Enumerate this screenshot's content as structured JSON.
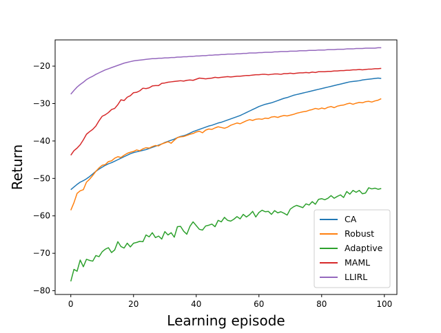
{
  "chart_data": {
    "type": "line",
    "title": "",
    "xlabel": "Learning episode",
    "ylabel": "Return",
    "xlim": [
      -5,
      104
    ],
    "ylim": [
      -81,
      -13
    ],
    "xticks": [
      0,
      20,
      40,
      60,
      80,
      100
    ],
    "yticks": [
      -80,
      -70,
      -60,
      -50,
      -40,
      -30,
      -20
    ],
    "grid": false,
    "legend_position": "lower-right",
    "x": [
      0,
      1,
      2,
      3,
      4,
      5,
      6,
      7,
      8,
      9,
      10,
      11,
      12,
      13,
      14,
      15,
      16,
      17,
      18,
      19,
      20,
      21,
      22,
      23,
      24,
      25,
      26,
      27,
      28,
      29,
      30,
      31,
      32,
      33,
      34,
      35,
      36,
      37,
      38,
      39,
      40,
      41,
      42,
      43,
      44,
      45,
      46,
      47,
      48,
      49,
      50,
      51,
      52,
      53,
      54,
      55,
      56,
      57,
      58,
      59,
      60,
      61,
      62,
      63,
      64,
      65,
      66,
      67,
      68,
      69,
      70,
      71,
      72,
      73,
      74,
      75,
      76,
      77,
      78,
      79,
      80,
      81,
      82,
      83,
      84,
      85,
      86,
      87,
      88,
      89,
      90,
      91,
      92,
      93,
      94,
      95,
      96,
      97,
      98,
      99
    ],
    "series": [
      {
        "name": "CA",
        "color": "#1f77b4",
        "values": [
          -53,
          -52.3,
          -51.6,
          -51,
          -50.6,
          -50.1,
          -49.5,
          -48.8,
          -48.1,
          -47.5,
          -47,
          -46.5,
          -46.1,
          -45.8,
          -45.4,
          -45,
          -44.6,
          -44.2,
          -43.8,
          -43.4,
          -43.1,
          -42.9,
          -42.7,
          -42.5,
          -42.3,
          -42,
          -41.7,
          -41.4,
          -41.1,
          -40.8,
          -40.4,
          -40.1,
          -39.8,
          -39.5,
          -39.1,
          -38.8,
          -38.6,
          -38.3,
          -37.9,
          -37.5,
          -37.2,
          -36.9,
          -36.6,
          -36.3,
          -36,
          -35.8,
          -35.5,
          -35.2,
          -35,
          -34.7,
          -34.4,
          -34.1,
          -33.8,
          -33.5,
          -33.2,
          -32.8,
          -32.4,
          -32,
          -31.6,
          -31.2,
          -30.8,
          -30.5,
          -30.2,
          -30,
          -29.8,
          -29.5,
          -29.2,
          -28.9,
          -28.6,
          -28.4,
          -28.1,
          -27.8,
          -27.6,
          -27.4,
          -27.2,
          -27,
          -26.8,
          -26.6,
          -26.4,
          -26.2,
          -26,
          -25.8,
          -25.6,
          -25.4,
          -25.2,
          -25,
          -24.8,
          -24.6,
          -24.4,
          -24.2,
          -24.1,
          -24,
          -23.9,
          -23.7,
          -23.6,
          -23.5,
          -23.4,
          -23.3,
          -23.2,
          -23.3
        ]
      },
      {
        "name": "Robust",
        "color": "#ff7f0e",
        "values": [
          -58.5,
          -56.5,
          -54,
          -53.3,
          -53,
          -51,
          -50.2,
          -49.2,
          -48.1,
          -47.2,
          -46.5,
          -46.3,
          -45.5,
          -45.3,
          -44.6,
          -44.2,
          -44.4,
          -43.8,
          -43.3,
          -43,
          -42.8,
          -42.4,
          -42.6,
          -42.1,
          -41.8,
          -41.9,
          -41.5,
          -41.2,
          -41.3,
          -40.8,
          -40.5,
          -40.2,
          -40.6,
          -39.8,
          -39.1,
          -38.9,
          -38.8,
          -38.5,
          -38.2,
          -38,
          -37.6,
          -37.4,
          -37.8,
          -37.1,
          -36.8,
          -36.9,
          -36.5,
          -36.2,
          -36.4,
          -36.6,
          -36.3,
          -35.8,
          -35.5,
          -35.2,
          -35.4,
          -35,
          -34.6,
          -34.3,
          -34.5,
          -34.2,
          -34.1,
          -34.2,
          -33.9,
          -34,
          -33.6,
          -33.5,
          -33.7,
          -33.4,
          -33.2,
          -33.3,
          -33.1,
          -32.9,
          -32.6,
          -32.4,
          -32.2,
          -32.1,
          -31.8,
          -31.6,
          -31.3,
          -31.5,
          -31.2,
          -31.4,
          -31,
          -30.8,
          -31.1,
          -30.7,
          -30.5,
          -30.4,
          -30.1,
          -29.9,
          -30.2,
          -29.9,
          -29.7,
          -29.8,
          -29.5,
          -29.4,
          -29.6,
          -29.3,
          -29.1,
          -28.7
        ]
      },
      {
        "name": "Adaptive",
        "color": "#2ca02c",
        "values": [
          -77.5,
          -74.3,
          -74.8,
          -71.8,
          -73.6,
          -71.6,
          -71.9,
          -72.1,
          -70.6,
          -70.9,
          -69.6,
          -68.9,
          -68.5,
          -69.8,
          -69.1,
          -66.9,
          -68.2,
          -68.6,
          -67.3,
          -68.3,
          -67.3,
          -67.1,
          -66.8,
          -66.9,
          -65.1,
          -65.6,
          -64.5,
          -65.8,
          -65.4,
          -66.2,
          -64.2,
          -65.1,
          -64.5,
          -65.7,
          -62.9,
          -62.8,
          -64.1,
          -64.9,
          -62.8,
          -61.6,
          -62.6,
          -63.6,
          -63.8,
          -62.7,
          -62.5,
          -62.2,
          -62.9,
          -61.2,
          -61.6,
          -60.4,
          -61.2,
          -61.4,
          -60.9,
          -60.2,
          -60.8,
          -59.6,
          -60.3,
          -59.7,
          -58.8,
          -60.3,
          -59.1,
          -58.5,
          -58.9,
          -58.8,
          -59.6,
          -58.6,
          -59.2,
          -58.9,
          -59.3,
          -59.8,
          -58.2,
          -57.6,
          -57.2,
          -57.5,
          -57.8,
          -56.8,
          -57.1,
          -56.2,
          -56.9,
          -55.6,
          -55.4,
          -55.7,
          -55.3,
          -54.6,
          -55.3,
          -54.8,
          -54.4,
          -55.1,
          -53.5,
          -54.2,
          -53.2,
          -53.7,
          -53.2,
          -54.1,
          -53.9,
          -52.5,
          -52.8,
          -52.6,
          -52.9,
          -52.7
        ]
      },
      {
        "name": "MAML",
        "color": "#d62728",
        "values": [
          -43.8,
          -42.6,
          -41.9,
          -41,
          -39.7,
          -38.2,
          -37.5,
          -36.9,
          -36,
          -34.6,
          -33.4,
          -33,
          -32.4,
          -31.6,
          -31.3,
          -30.3,
          -29,
          -29.2,
          -28.3,
          -27.9,
          -27.1,
          -27,
          -26.6,
          -25.9,
          -26,
          -25.8,
          -25.3,
          -25.2,
          -25.2,
          -24.6,
          -24.5,
          -24.3,
          -24.2,
          -24.1,
          -24,
          -23.9,
          -24,
          -23.8,
          -23.7,
          -23.8,
          -23.5,
          -23.2,
          -23.3,
          -23.4,
          -23.3,
          -23.2,
          -23,
          -23.1,
          -23,
          -22.9,
          -22.8,
          -22.9,
          -22.8,
          -22.7,
          -22.7,
          -22.6,
          -22.5,
          -22.5,
          -22.4,
          -22.3,
          -22.3,
          -22.2,
          -22.2,
          -22.3,
          -22.2,
          -22.1,
          -22.1,
          -22.2,
          -22,
          -22,
          -21.9,
          -22,
          -21.9,
          -21.8,
          -21.8,
          -21.7,
          -21.8,
          -21.6,
          -21.7,
          -21.5,
          -21.5,
          -21.5,
          -21.4,
          -21.4,
          -21.3,
          -21.3,
          -21.2,
          -21.2,
          -21.1,
          -21.1,
          -21,
          -21,
          -20.9,
          -21,
          -20.9,
          -20.8,
          -20.8,
          -20.7,
          -20.7,
          -20.6
        ]
      },
      {
        "name": "LLIRL",
        "color": "#9467bd",
        "values": [
          -27.5,
          -26.5,
          -25.6,
          -24.9,
          -24.3,
          -23.6,
          -23.1,
          -22.7,
          -22.2,
          -21.8,
          -21.4,
          -21,
          -20.7,
          -20.4,
          -20.1,
          -19.8,
          -19.5,
          -19.2,
          -19,
          -18.8,
          -18.6,
          -18.5,
          -18.4,
          -18.3,
          -18.2,
          -18.1,
          -18,
          -18,
          -17.9,
          -17.9,
          -17.8,
          -17.8,
          -17.7,
          -17.7,
          -17.6,
          -17.6,
          -17.5,
          -17.5,
          -17.4,
          -17.4,
          -17.3,
          -17.3,
          -17.2,
          -17.2,
          -17.1,
          -17.1,
          -17,
          -17,
          -16.9,
          -16.9,
          -16.8,
          -16.8,
          -16.8,
          -16.7,
          -16.7,
          -16.6,
          -16.6,
          -16.5,
          -16.5,
          -16.5,
          -16.4,
          -16.4,
          -16.3,
          -16.3,
          -16.3,
          -16.2,
          -16.2,
          -16.1,
          -16.1,
          -16.1,
          -16,
          -16,
          -16,
          -15.9,
          -15.9,
          -15.9,
          -15.8,
          -15.8,
          -15.8,
          -15.7,
          -15.7,
          -15.7,
          -15.6,
          -15.6,
          -15.6,
          -15.5,
          -15.5,
          -15.5,
          -15.4,
          -15.4,
          -15.4,
          -15.3,
          -15.3,
          -15.3,
          -15.2,
          -15.2,
          -15.2,
          -15.2,
          -15.1,
          -15.1
        ]
      }
    ]
  }
}
